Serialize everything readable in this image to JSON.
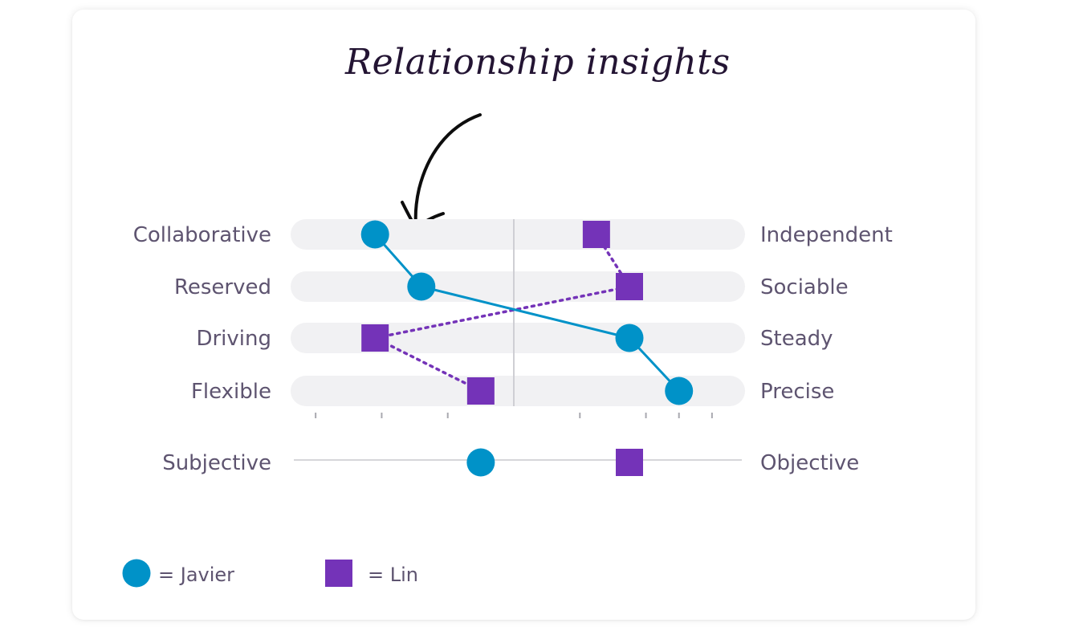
{
  "title": "Relationship insights",
  "chart_data": {
    "type": "scatter",
    "title": "Relationship insights",
    "xlim": [
      -3.5,
      3.5
    ],
    "rows": [
      {
        "left": "Collaborative",
        "right": "Independent",
        "Javier": -2.1,
        "Lin": 1.25
      },
      {
        "left": "Reserved",
        "right": "Sociable",
        "Javier": -1.4,
        "Lin": 1.75
      },
      {
        "left": "Driving",
        "right": "Steady",
        "Javier": 1.75,
        "Lin": -2.1
      },
      {
        "left": "Flexible",
        "right": "Precise",
        "Javier": 2.5,
        "Lin": -0.5
      }
    ],
    "extra_axis": {
      "left": "Subjective",
      "right": "Objective",
      "Javier": -0.5,
      "Lin": 1.75
    },
    "series": [
      {
        "name": "Javier",
        "marker": "circle",
        "color": "#0092C8",
        "line": "solid"
      },
      {
        "name": "Lin",
        "marker": "square",
        "color": "#7433B8",
        "line": "dotted"
      }
    ],
    "legend": [
      {
        "text": "= Javier",
        "series": "Javier"
      },
      {
        "text": "= Lin",
        "series": "Lin"
      }
    ],
    "legend_position": "bottom-left",
    "center_line": true
  },
  "colors": {
    "javier": "#0092C8",
    "lin": "#7433B8",
    "track": "#F1F1F3",
    "label": "#5e5470",
    "title": "#231433"
  }
}
